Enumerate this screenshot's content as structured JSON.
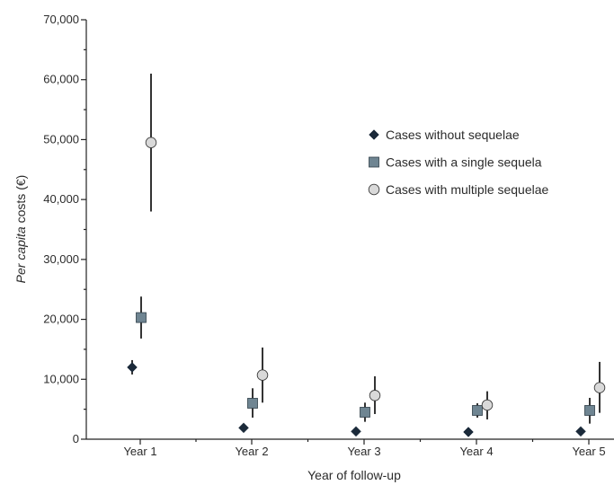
{
  "chart_data": {
    "type": "scatter",
    "xlabel": "Year of follow-up",
    "ylabel_italic": "Per capita",
    "ylabel_rest": " costs (€)",
    "categories": [
      "Year 1",
      "Year 2",
      "Year 3",
      "Year 4",
      "Year 5"
    ],
    "ylim": [
      0,
      70000
    ],
    "yticks": [
      0,
      10000,
      20000,
      30000,
      40000,
      50000,
      60000,
      70000
    ],
    "ytick_labels": [
      "0",
      "10,000",
      "20,000",
      "30,000",
      "40,000",
      "50,000",
      "60,000",
      "70,000"
    ],
    "legend_position": "right, upper-middle",
    "series": [
      {
        "name": "Cases without sequelae",
        "marker": "diamond",
        "color": "#1b2a3a",
        "values": [
          12000,
          1900,
          1300,
          1200,
          1300
        ],
        "err_low": [
          10800,
          1900,
          1300,
          1200,
          1300
        ],
        "err_high": [
          13200,
          1900,
          1300,
          1200,
          1300
        ]
      },
      {
        "name": "Cases with a single sequela",
        "marker": "square",
        "color": "#6f8592",
        "values": [
          20300,
          6000,
          4500,
          4800,
          4800
        ],
        "err_low": [
          16800,
          3600,
          2900,
          3600,
          2600
        ],
        "err_high": [
          23800,
          8500,
          6100,
          6000,
          6900
        ]
      },
      {
        "name": "Cases with multiple sequelae",
        "marker": "circle",
        "color": "#d9d9d9",
        "values": [
          49500,
          10700,
          7300,
          5700,
          8600
        ],
        "err_low": [
          38000,
          6100,
          4200,
          3300,
          4400
        ],
        "err_high": [
          61000,
          15300,
          10500,
          8000,
          12900
        ]
      }
    ]
  }
}
